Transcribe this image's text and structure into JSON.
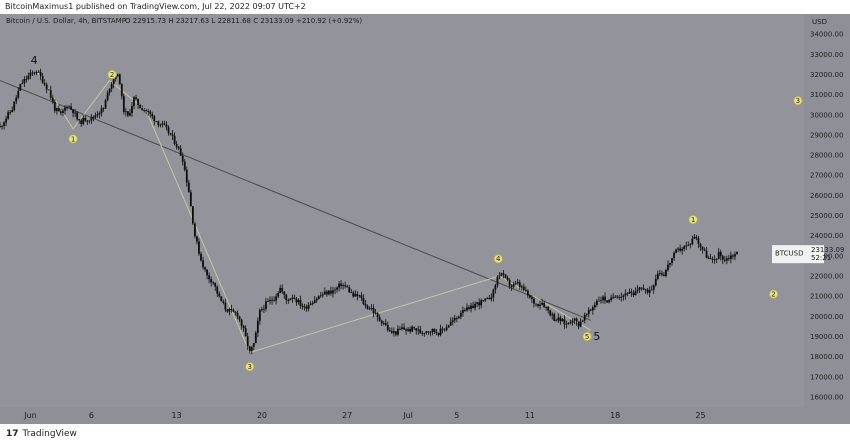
{
  "header": {
    "text": "BitcoinMaximus1 published on TradingView.com, Jul 22, 2022 09:07 UTC+2",
    "symbol": "Bitcoin / U.S. Dollar, 4h, BITSTAMP",
    "ohlc": "O 22915.73 H 23217.63 L 22811.68 C 23133.09 +210.92 (+0.92%)"
  },
  "footer": {
    "brand": "TradingView",
    "logo": "17"
  },
  "chart_data": {
    "type": "candlestick",
    "currency_label": "USD",
    "price_tag": {
      "symbol": "BTCUSD",
      "price": "23133.09",
      "countdown": "52:21",
      "value": 23133
    },
    "y_ticks": [
      "34000.00",
      "33000.00",
      "32000.00",
      "31000.00",
      "30000.00",
      "29000.00",
      "28000.00",
      "27000.00",
      "26000.00",
      "25000.00",
      "24000.00",
      "23000.00",
      "22000.00",
      "21000.00",
      "20000.00",
      "19000.00",
      "18000.00",
      "17000.00",
      "16000.00"
    ],
    "y_tick_values": [
      34000,
      33000,
      32000,
      31000,
      30000,
      29000,
      28000,
      27000,
      26000,
      25000,
      24000,
      23000,
      22000,
      21000,
      20000,
      19000,
      18000,
      17000,
      16000
    ],
    "x_ticks": [
      "Jun",
      "6",
      "13",
      "20",
      "27",
      "Jul",
      "5",
      "11",
      "18",
      "25"
    ],
    "x_tick_days": [
      1,
      6,
      13,
      20,
      27,
      32,
      36,
      42,
      49,
      56
    ],
    "x_axis_note": "x values are days counted from May 31 (Jun 1 = 1, Jul 1 = 31)",
    "ylim": [
      15500,
      35000
    ],
    "xlim": [
      -1.5,
      64.5
    ],
    "price_path": [
      [
        -1.5,
        29400
      ],
      [
        -0.5,
        30300
      ],
      [
        0.2,
        31500
      ],
      [
        0.8,
        31900
      ],
      [
        1.5,
        32200
      ],
      [
        2,
        31700
      ],
      [
        2.5,
        31200
      ],
      [
        3,
        30300
      ],
      [
        3.5,
        30000
      ],
      [
        4,
        30500
      ],
      [
        4.5,
        30200
      ],
      [
        5,
        29600
      ],
      [
        5.5,
        29800
      ],
      [
        6,
        29800
      ],
      [
        6.5,
        30100
      ],
      [
        7,
        30300
      ],
      [
        7.5,
        31400
      ],
      [
        8,
        32000
      ],
      [
        8.3,
        31800
      ],
      [
        8.6,
        30300
      ],
      [
        9,
        29900
      ],
      [
        9.5,
        30800
      ],
      [
        10,
        30400
      ],
      [
        10.5,
        30200
      ],
      [
        11,
        29900
      ],
      [
        11.5,
        29600
      ],
      [
        12,
        29400
      ],
      [
        12.5,
        29000
      ],
      [
        13,
        28500
      ],
      [
        13.5,
        27800
      ],
      [
        14,
        26200
      ],
      [
        14.5,
        24000
      ],
      [
        15,
        22800
      ],
      [
        15.5,
        22000
      ],
      [
        16,
        21700
      ],
      [
        16.5,
        20900
      ],
      [
        17,
        20400
      ],
      [
        17.5,
        20200
      ],
      [
        18,
        20100
      ],
      [
        18.5,
        19300
      ],
      [
        19,
        18200
      ],
      [
        19.4,
        18700
      ],
      [
        19.8,
        20200
      ],
      [
        20.3,
        20600
      ],
      [
        21,
        20900
      ],
      [
        21.5,
        21400
      ],
      [
        22,
        20800
      ],
      [
        22.5,
        21000
      ],
      [
        23,
        20700
      ],
      [
        23.5,
        20400
      ],
      [
        24,
        20700
      ],
      [
        24.5,
        20900
      ],
      [
        25,
        21100
      ],
      [
        25.5,
        21200
      ],
      [
        26,
        21300
      ],
      [
        26.5,
        21600
      ],
      [
        27,
        21400
      ],
      [
        27.5,
        21000
      ],
      [
        28,
        21000
      ],
      [
        28.5,
        20500
      ],
      [
        29,
        20400
      ],
      [
        29.5,
        19900
      ],
      [
        30,
        19700
      ],
      [
        30.5,
        19200
      ],
      [
        31,
        19200
      ],
      [
        31.5,
        19400
      ],
      [
        32,
        19300
      ],
      [
        32.5,
        19400
      ],
      [
        33,
        19200
      ],
      [
        33.5,
        19300
      ],
      [
        34,
        19300
      ],
      [
        34.5,
        19200
      ],
      [
        35,
        19400
      ],
      [
        35.5,
        19700
      ],
      [
        36,
        19900
      ],
      [
        36.5,
        20400
      ],
      [
        37,
        20300
      ],
      [
        37.5,
        20600
      ],
      [
        38,
        20700
      ],
      [
        38.5,
        20800
      ],
      [
        39,
        21200
      ],
      [
        39.3,
        21900
      ],
      [
        39.6,
        22200
      ],
      [
        40,
        21800
      ],
      [
        40.5,
        21500
      ],
      [
        41,
        21600
      ],
      [
        41.5,
        21300
      ],
      [
        42,
        20900
      ],
      [
        42.5,
        20600
      ],
      [
        43,
        20700
      ],
      [
        43.5,
        20300
      ],
      [
        44,
        19900
      ],
      [
        44.5,
        19800
      ],
      [
        45,
        19600
      ],
      [
        45.5,
        19900
      ],
      [
        46,
        19600
      ],
      [
        46.5,
        20000
      ],
      [
        47,
        20300
      ],
      [
        47.5,
        20800
      ],
      [
        48,
        20900
      ],
      [
        48.5,
        20700
      ],
      [
        49,
        21100
      ],
      [
        49.5,
        21000
      ],
      [
        50,
        21200
      ],
      [
        50.5,
        21000
      ],
      [
        51,
        21500
      ],
      [
        51.5,
        21200
      ],
      [
        52,
        21400
      ],
      [
        52.5,
        22200
      ],
      [
        53,
        22100
      ],
      [
        53.5,
        22700
      ],
      [
        54,
        23200
      ],
      [
        54.5,
        23400
      ],
      [
        55,
        23500
      ],
      [
        55.5,
        24000
      ],
      [
        55.9,
        23600
      ],
      [
        56.2,
        23300
      ],
      [
        56.6,
        22900
      ],
      [
        57,
        22700
      ],
      [
        57.5,
        23100
      ],
      [
        58,
        22800
      ],
      [
        58.5,
        23000
      ],
      [
        59,
        23133
      ]
    ],
    "lines": [
      {
        "name": "descending resistance",
        "color": "#4a4a4e",
        "points": [
          [
            -1.5,
            31700
          ],
          [
            47,
            19800
          ]
        ]
      },
      {
        "name": "wave path",
        "color": "#c7c79e",
        "points": [
          [
            1.5,
            32200
          ],
          [
            4.5,
            29300
          ],
          [
            7.5,
            31700
          ],
          [
            10.5,
            30200
          ],
          [
            19,
            18200
          ],
          [
            39.5,
            22000
          ],
          [
            47,
            19300
          ]
        ]
      }
    ],
    "wave_labels": [
      {
        "text": "4",
        "style": "plain",
        "x": 1.3,
        "y": 32700
      },
      {
        "text": "1",
        "style": "circle",
        "x": 4.5,
        "y": 28800
      },
      {
        "text": "2",
        "style": "circle",
        "x": 7.7,
        "y": 32000
      },
      {
        "text": "3",
        "style": "circle",
        "x": 19,
        "y": 17500
      },
      {
        "text": "4",
        "style": "circle",
        "x": 39.4,
        "y": 22850
      },
      {
        "text": "5",
        "style": "plain",
        "x": 47.5,
        "y": 19000
      },
      {
        "text": "5",
        "style": "circle",
        "x": 46.7,
        "y": 19000
      },
      {
        "text": "1",
        "style": "circle",
        "x": 55.4,
        "y": 24800
      },
      {
        "text": "2",
        "style": "circle",
        "x": 62,
        "y": 21100
      },
      {
        "text": "3",
        "style": "circle",
        "x": 64,
        "y": 30700
      }
    ],
    "colors": {
      "plot_bg": "#93939b",
      "axis_bg": "#8f8f97",
      "candles": "#0d0d0d",
      "wave_circle_fill": "#e6e28a",
      "wave_circle_stroke": "#b5b04a",
      "price_tag_bg": "#f2f2f2"
    }
  }
}
